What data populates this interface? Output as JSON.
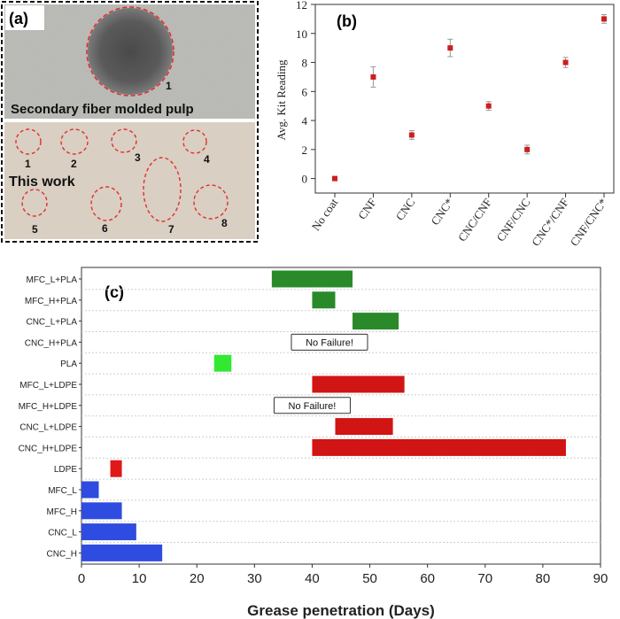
{
  "panel_a": {
    "label": "(a)",
    "top_caption": "Secondary fiber molded pulp",
    "top_marker": "1",
    "bottom_caption": "This work",
    "bottom_markers": [
      "1",
      "2",
      "3",
      "4",
      "5",
      "6",
      "7",
      "8"
    ],
    "colors": {
      "top_bg": "#b9b9b4",
      "bottom_bg": "#d9cfc2",
      "dashed": "#e0302f"
    }
  },
  "chart_data": [
    {
      "type": "scatter",
      "label": "(b)",
      "title": "",
      "xlabel": "",
      "ylabel": "Avg. Kit Reading",
      "categories": [
        "No coat",
        "CNF",
        "CNC",
        "CNC*",
        "CNC/CNF",
        "CNF/CNC",
        "CNC*/CNF",
        "CNF/CNC*"
      ],
      "values": [
        0,
        7,
        3,
        9,
        5,
        2,
        8,
        11
      ],
      "errors": [
        0.1,
        0.7,
        0.3,
        0.6,
        0.3,
        0.3,
        0.35,
        0.3
      ],
      "ylim": [
        -1,
        12
      ],
      "yticks": [
        0,
        2,
        4,
        6,
        8,
        10,
        12
      ],
      "marker_color": "#cc1f1f"
    },
    {
      "type": "bar",
      "orientation": "horizontal",
      "label": "(c)",
      "title": "",
      "xlabel": "Grease penetration (Days)",
      "ylabel": "",
      "xlim": [
        0,
        90
      ],
      "xticks": [
        0,
        10,
        20,
        30,
        40,
        50,
        60,
        70,
        80,
        90
      ],
      "categories": [
        "MFC_L+PLA",
        "MFC_H+PLA",
        "CNC_L+PLA",
        "CNC_H+PLA",
        "PLA",
        "MFC_L+LDPE",
        "MFC_H+LDPE",
        "CNC_L+LDPE",
        "CNC_H+LDPE",
        "LDPE",
        "MFC_L",
        "MFC_H",
        "CNC_L",
        "CNC_H"
      ],
      "bars": [
        {
          "start": 33,
          "end": 47,
          "color": "#2a8a2a"
        },
        {
          "start": 40,
          "end": 44,
          "color": "#2a8a2a"
        },
        {
          "start": 47,
          "end": 55,
          "color": "#2a8a2a"
        },
        null,
        {
          "start": 23,
          "end": 26,
          "color": "#33e833"
        },
        {
          "start": 40,
          "end": 56,
          "color": "#d11414"
        },
        null,
        {
          "start": 44,
          "end": 54,
          "color": "#d11414"
        },
        {
          "start": 40,
          "end": 84,
          "color": "#d11414"
        },
        {
          "start": 5,
          "end": 7,
          "color": "#e01818"
        },
        {
          "start": 0,
          "end": 3,
          "color": "#2f4ce0"
        },
        {
          "start": 0,
          "end": 7,
          "color": "#2f4ce0"
        },
        {
          "start": 0,
          "end": 9.5,
          "color": "#2f4ce0"
        },
        {
          "start": 0,
          "end": 14,
          "color": "#2f4ce0"
        }
      ],
      "annotations": [
        {
          "row": 3,
          "text": "No Failure!",
          "x": 43
        },
        {
          "row": 6,
          "text": "No Failure!",
          "x": 40
        }
      ]
    }
  ]
}
